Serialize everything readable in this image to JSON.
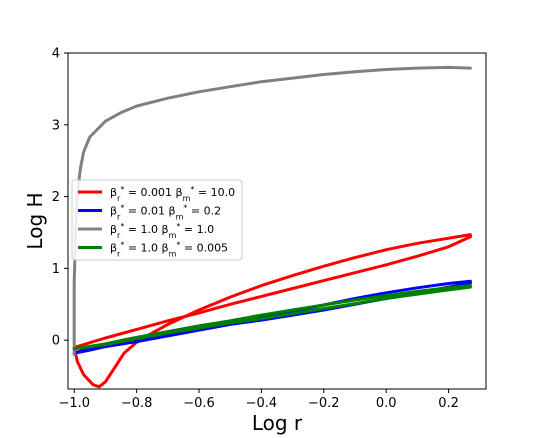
{
  "chart_data": {
    "type": "line",
    "title": "",
    "xlabel": "Log r",
    "ylabel": "Log H",
    "xlim": [
      -1.02,
      0.32
    ],
    "ylim": [
      -0.68,
      4.0
    ],
    "xticks": [
      -1.0,
      -0.8,
      -0.6,
      -0.4,
      -0.2,
      0.0,
      0.2
    ],
    "xtick_labels": [
      "−1.0",
      "−0.8",
      "−0.6",
      "−0.4",
      "−0.2",
      "0.0",
      "0.2"
    ],
    "yticks": [
      0,
      1,
      2,
      3,
      4
    ],
    "ytick_labels": [
      "0",
      "1",
      "2",
      "3",
      "4"
    ],
    "grid": false,
    "legend_position": "center-left",
    "series": [
      {
        "name": "βr* = 0.001 βm* = 10.0",
        "label_parts": {
          "r": "0.001",
          "m": "10.0"
        },
        "color": "#ff0000",
        "points": [
          [
            -1.0,
            -0.1
          ],
          [
            -0.99,
            -0.3
          ],
          [
            -0.97,
            -0.48
          ],
          [
            -0.94,
            -0.62
          ],
          [
            -0.92,
            -0.65
          ],
          [
            -0.9,
            -0.58
          ],
          [
            -0.87,
            -0.38
          ],
          [
            -0.84,
            -0.18
          ],
          [
            -0.8,
            -0.03
          ],
          [
            -0.75,
            0.1
          ],
          [
            -0.7,
            0.22
          ],
          [
            -0.6,
            0.42
          ],
          [
            -0.5,
            0.6
          ],
          [
            -0.4,
            0.76
          ],
          [
            -0.3,
            0.9
          ],
          [
            -0.2,
            1.03
          ],
          [
            -0.1,
            1.15
          ],
          [
            0.0,
            1.26
          ],
          [
            0.1,
            1.35
          ],
          [
            0.2,
            1.42
          ],
          [
            0.27,
            1.47
          ],
          [
            0.27,
            1.44
          ],
          [
            0.2,
            1.3
          ],
          [
            0.1,
            1.17
          ],
          [
            0.0,
            1.05
          ],
          [
            -0.1,
            0.94
          ],
          [
            -0.2,
            0.83
          ],
          [
            -0.3,
            0.72
          ],
          [
            -0.4,
            0.61
          ],
          [
            -0.5,
            0.5
          ],
          [
            -0.6,
            0.38
          ],
          [
            -0.7,
            0.27
          ],
          [
            -0.8,
            0.15
          ],
          [
            -0.9,
            0.03
          ],
          [
            -1.0,
            -0.1
          ]
        ]
      },
      {
        "name": "βr* = 0.01 βm* = 0.2",
        "label_parts": {
          "r": "0.01",
          "m": "0.2"
        },
        "color": "#0000ff",
        "points": [
          [
            -1.0,
            -0.18
          ],
          [
            -0.95,
            -0.14
          ],
          [
            -0.9,
            -0.09
          ],
          [
            -0.8,
            -0.02
          ],
          [
            -0.7,
            0.06
          ],
          [
            -0.6,
            0.14
          ],
          [
            -0.5,
            0.22
          ],
          [
            -0.4,
            0.31
          ],
          [
            -0.3,
            0.4
          ],
          [
            -0.2,
            0.49
          ],
          [
            -0.1,
            0.58
          ],
          [
            0.0,
            0.66
          ],
          [
            0.1,
            0.73
          ],
          [
            0.2,
            0.79
          ],
          [
            0.27,
            0.82
          ],
          [
            0.27,
            0.79
          ],
          [
            0.2,
            0.74
          ],
          [
            0.1,
            0.66
          ],
          [
            0.0,
            0.58
          ],
          [
            -0.1,
            0.5
          ],
          [
            -0.2,
            0.42
          ],
          [
            -0.3,
            0.35
          ],
          [
            -0.4,
            0.28
          ],
          [
            -0.5,
            0.22
          ],
          [
            -0.6,
            0.15
          ],
          [
            -0.7,
            0.08
          ],
          [
            -0.8,
            0.0
          ],
          [
            -0.9,
            -0.07
          ],
          [
            -0.95,
            -0.11
          ],
          [
            -1.0,
            -0.18
          ]
        ]
      },
      {
        "name": "βr* = 1.0 βm* = 1.0",
        "label_parts": {
          "r": "1.0",
          "m": "1.0"
        },
        "color": "#808080",
        "points": [
          [
            -1.0,
            -0.2
          ],
          [
            -1.0,
            0.8
          ],
          [
            -0.995,
            1.6
          ],
          [
            -0.99,
            2.05
          ],
          [
            -0.98,
            2.4
          ],
          [
            -0.97,
            2.62
          ],
          [
            -0.95,
            2.83
          ],
          [
            -0.9,
            3.05
          ],
          [
            -0.85,
            3.17
          ],
          [
            -0.8,
            3.26
          ],
          [
            -0.7,
            3.37
          ],
          [
            -0.6,
            3.46
          ],
          [
            -0.5,
            3.53
          ],
          [
            -0.4,
            3.6
          ],
          [
            -0.3,
            3.65
          ],
          [
            -0.2,
            3.7
          ],
          [
            -0.1,
            3.74
          ],
          [
            0.0,
            3.77
          ],
          [
            0.1,
            3.79
          ],
          [
            0.2,
            3.8
          ],
          [
            0.27,
            3.79
          ]
        ]
      },
      {
        "name": "βr* = 1.0 βm* = 0.005",
        "label_parts": {
          "r": "1.0",
          "m": "0.005"
        },
        "color": "#008000",
        "points": [
          [
            -1.0,
            -0.12
          ],
          [
            -0.9,
            -0.05
          ],
          [
            -0.8,
            0.04
          ],
          [
            -0.7,
            0.12
          ],
          [
            -0.6,
            0.2
          ],
          [
            -0.5,
            0.27
          ],
          [
            -0.4,
            0.35
          ],
          [
            -0.3,
            0.42
          ],
          [
            -0.2,
            0.49
          ],
          [
            -0.1,
            0.56
          ],
          [
            0.0,
            0.62
          ],
          [
            0.1,
            0.68
          ],
          [
            0.2,
            0.73
          ],
          [
            0.27,
            0.76
          ],
          [
            0.27,
            0.74
          ],
          [
            0.2,
            0.7
          ],
          [
            0.1,
            0.64
          ],
          [
            0.0,
            0.58
          ],
          [
            -0.1,
            0.51
          ],
          [
            -0.2,
            0.44
          ],
          [
            -0.3,
            0.37
          ],
          [
            -0.4,
            0.3
          ],
          [
            -0.5,
            0.24
          ],
          [
            -0.6,
            0.17
          ],
          [
            -0.7,
            0.1
          ],
          [
            -0.8,
            0.02
          ],
          [
            -0.9,
            -0.06
          ],
          [
            -1.0,
            -0.12
          ]
        ]
      }
    ]
  }
}
